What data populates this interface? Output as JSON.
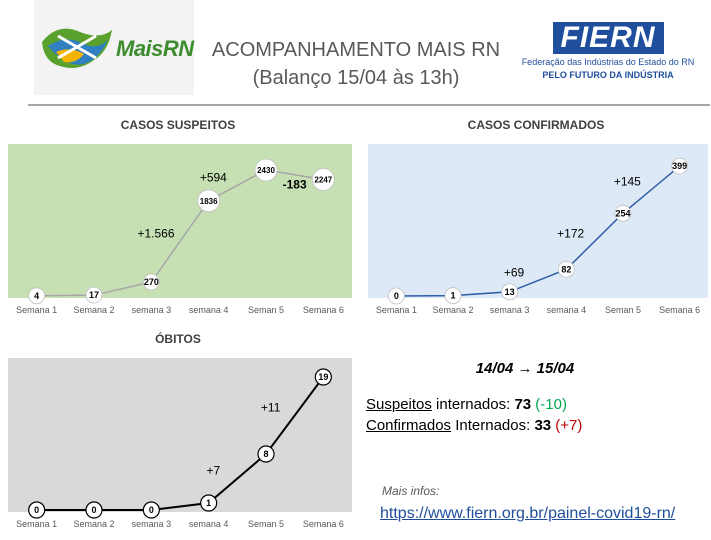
{
  "header": {
    "logo_left_text": "MaisRN",
    "title_line1": "ACOMPANHAMENTO MAIS RN",
    "title_line2": "(Balanço 15/04 às 13h)",
    "logo_right_name": "FIERN",
    "logo_right_sub1": "Federação das Indústrias do Estado do RN",
    "logo_right_sub2": "PELO FUTURO DA INDÚSTRIA"
  },
  "colors": {
    "suspeitos_bg": "#c6e0b4",
    "suspeitos_line": "#a6a6a6",
    "confirmados_bg": "#dde9f6",
    "confirmados_line": "#2e5fa6",
    "obitos_bg": "#d9d9d9",
    "obitos_line": "#000000"
  },
  "chart_data": [
    {
      "id": "suspeitos",
      "type": "line",
      "title": "CASOS SUSPEITOS",
      "categories": [
        "Semana 1",
        "Semana 2",
        "semana 3",
        "semana 4",
        "Seman 5",
        "Semana 6"
      ],
      "values": [
        4,
        17,
        270,
        1836,
        2430,
        2247
      ],
      "data_labels": [
        "4",
        "17",
        "270",
        "1836",
        "2430",
        "2247"
      ],
      "ylim": [
        0,
        2700
      ],
      "annotations": [
        {
          "text": "+1.566",
          "after_index": 2
        },
        {
          "text": "+594",
          "after_index": 3
        },
        {
          "text": "-183",
          "after_index": 4,
          "bold": true
        }
      ]
    },
    {
      "id": "confirmados",
      "type": "line",
      "title": "CASOS CONFIRMADOS",
      "categories": [
        "Semana 1",
        "Semana 2",
        "semana 3",
        "semana 4",
        "Seman 5",
        "Semana 6"
      ],
      "values": [
        0,
        1,
        13,
        82,
        254,
        399
      ],
      "data_labels": [
        "0",
        "1",
        "13",
        "82",
        "254",
        "399"
      ],
      "ylim": [
        0,
        430
      ],
      "annotations": [
        {
          "text": "+69",
          "after_index": 2
        },
        {
          "text": "+172",
          "after_index": 3
        },
        {
          "text": "+145",
          "after_index": 4
        }
      ]
    },
    {
      "id": "obitos",
      "type": "line",
      "title": "ÓBITOS",
      "categories": [
        "Semana 1",
        "Semana 2",
        "semana 3",
        "semana 4",
        "Seman 5",
        "Semana 6"
      ],
      "values": [
        0,
        0,
        0,
        1,
        8,
        19
      ],
      "data_labels": [
        "0",
        "0",
        "0",
        "1",
        "8",
        "19"
      ],
      "ylim": [
        0,
        20
      ],
      "annotations": [
        {
          "text": "+7",
          "after_index": 3
        },
        {
          "text": "+11",
          "after_index": 4
        }
      ]
    }
  ],
  "info": {
    "date_from": "14/04",
    "date_to": "15/04",
    "line1_label": "Suspeitos",
    "line1_rest": " internados: ",
    "line1_value": "73",
    "line1_delta": "(-10)",
    "line2_label": "Confirmados",
    "line2_rest": " Internados: ",
    "line2_value": "33",
    "line2_delta": "(+7)",
    "more_label": "Mais infos:",
    "link": "https://www.fiern.org.br/painel-covid19-rn/"
  }
}
